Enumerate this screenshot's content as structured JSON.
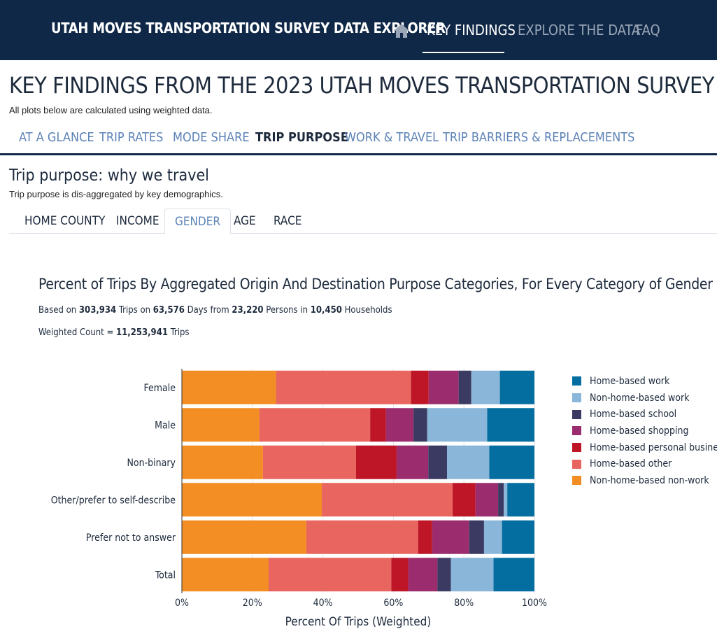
{
  "header": {
    "brand": "UTAH MOVES TRANSPORTATION SURVEY DATA EXPLORER",
    "nav": [
      {
        "label": "KEY FINDINGS",
        "active": true
      },
      {
        "label": "EXPLORE THE DATA",
        "active": false
      },
      {
        "label": "FAQ",
        "active": false
      }
    ],
    "home_icon": "home-icon"
  },
  "page": {
    "title": "KEY FINDINGS FROM THE 2023 UTAH MOVES TRANSPORTATION SURVEY",
    "subtitle": "All plots below are calculated using weighted data."
  },
  "section_tabs": [
    {
      "label": "AT A GLANCE"
    },
    {
      "label": "TRIP RATES"
    },
    {
      "label": "MODE SHARE"
    },
    {
      "label": "TRIP PURPOSE",
      "active": true
    },
    {
      "label": "WORK & TRAVEL"
    },
    {
      "label": "TRIP BARRIERS & REPLACEMENTS"
    }
  ],
  "section": {
    "title": "Trip purpose: why we travel",
    "subtitle": "Trip purpose is dis-aggregated by key demographics."
  },
  "demo_tabs": [
    {
      "label": "HOME COUNTY"
    },
    {
      "label": "INCOME"
    },
    {
      "label": "GENDER",
      "active": true
    },
    {
      "label": "AGE"
    },
    {
      "label": "RACE"
    }
  ],
  "chart_header": {
    "title": "Percent of Trips By Aggregated Origin And Destination Purpose Categories, For Every Category of Gender",
    "based_on_prefix": "Based on",
    "trips": "303,934",
    "trips_word": "Trips on",
    "days": "63,576",
    "days_word": "Days from",
    "persons": "23,220",
    "persons_word": "Persons in",
    "households": "10,450",
    "households_word": "Households",
    "weighted_prefix": "Weighted Count =",
    "weighted_count": "11,253,941",
    "weighted_suffix": "Trips"
  },
  "chart_data": {
    "type": "bar",
    "orientation": "horizontal",
    "stacked": true,
    "categories": [
      "Female",
      "Male",
      "Non-binary",
      "Other/prefer to self-describe",
      "Prefer not to answer",
      "Total"
    ],
    "series": [
      {
        "name": "Non-home-based non-work",
        "color": "#f28e23",
        "values": [
          26.7,
          22.0,
          23.0,
          39.7,
          35.3,
          24.6
        ]
      },
      {
        "name": "Home-based other",
        "color": "#e8665f",
        "values": [
          38.3,
          31.4,
          26.4,
          37.1,
          31.7,
          34.8
        ]
      },
      {
        "name": "Home-based personal business",
        "color": "#be1626",
        "values": [
          5.0,
          4.5,
          11.5,
          6.5,
          4.0,
          4.8
        ]
      },
      {
        "name": "Home-based shopping",
        "color": "#9b2d6e",
        "values": [
          8.5,
          7.8,
          9.0,
          6.4,
          10.5,
          8.3
        ]
      },
      {
        "name": "Home-based school",
        "color": "#3b3a62",
        "values": [
          3.6,
          3.9,
          5.3,
          1.6,
          4.2,
          3.8
        ]
      },
      {
        "name": "Non-home-based work",
        "color": "#8ab6da",
        "values": [
          8.1,
          17.0,
          12.0,
          1.0,
          5.1,
          12.1
        ]
      },
      {
        "name": "Home-based work",
        "color": "#046ea1",
        "values": [
          9.8,
          13.4,
          12.8,
          7.7,
          9.2,
          11.6
        ]
      }
    ],
    "legend_order": [
      "Home-based work",
      "Non-home-based work",
      "Home-based school",
      "Home-based shopping",
      "Home-based personal business",
      "Home-based other",
      "Non-home-based non-work"
    ],
    "xlabel": "Percent Of Trips (Weighted)",
    "xlim": [
      0,
      100
    ],
    "xticks": [
      "0%",
      "20%",
      "40%",
      "60%",
      "80%",
      "100%"
    ],
    "legend_position": "right",
    "grid": "vertical"
  }
}
